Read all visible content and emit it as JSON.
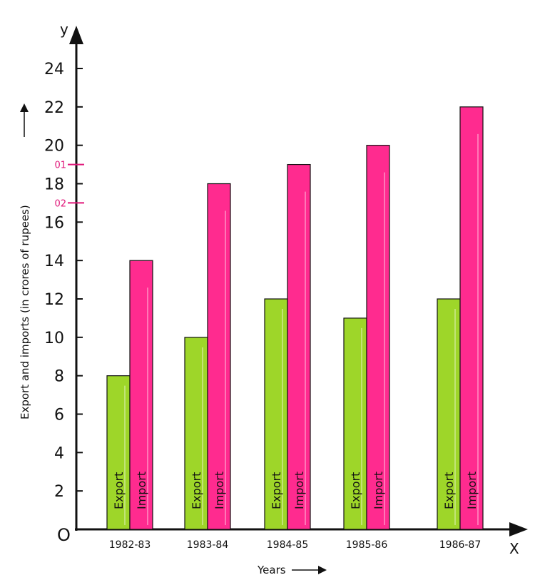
{
  "chart_data": {
    "type": "bar",
    "categories": [
      "1982-83",
      "1983-84",
      "1984-85",
      "1985-86",
      "1986-87"
    ],
    "series": [
      {
        "name": "Export",
        "values": [
          8,
          10,
          12,
          11,
          12
        ]
      },
      {
        "name": "Import",
        "values": [
          14,
          18,
          19,
          20,
          22
        ]
      }
    ],
    "ylim": [
      0,
      24
    ],
    "yticks": [
      2,
      4,
      6,
      8,
      10,
      12,
      14,
      16,
      18,
      20,
      22,
      24
    ],
    "x_axis_letter": "X",
    "y_axis_letter": "y",
    "origin_label": "O",
    "xlabel": "Years",
    "ylabel": "Export and imports (in crores of rupees)",
    "annotations": [
      {
        "text": "01",
        "y": 19
      },
      {
        "text": "02",
        "y": 17
      }
    ],
    "colors": {
      "export": "#9ED629",
      "import": "#FF2B8F",
      "annotation": "#E0187A"
    }
  }
}
